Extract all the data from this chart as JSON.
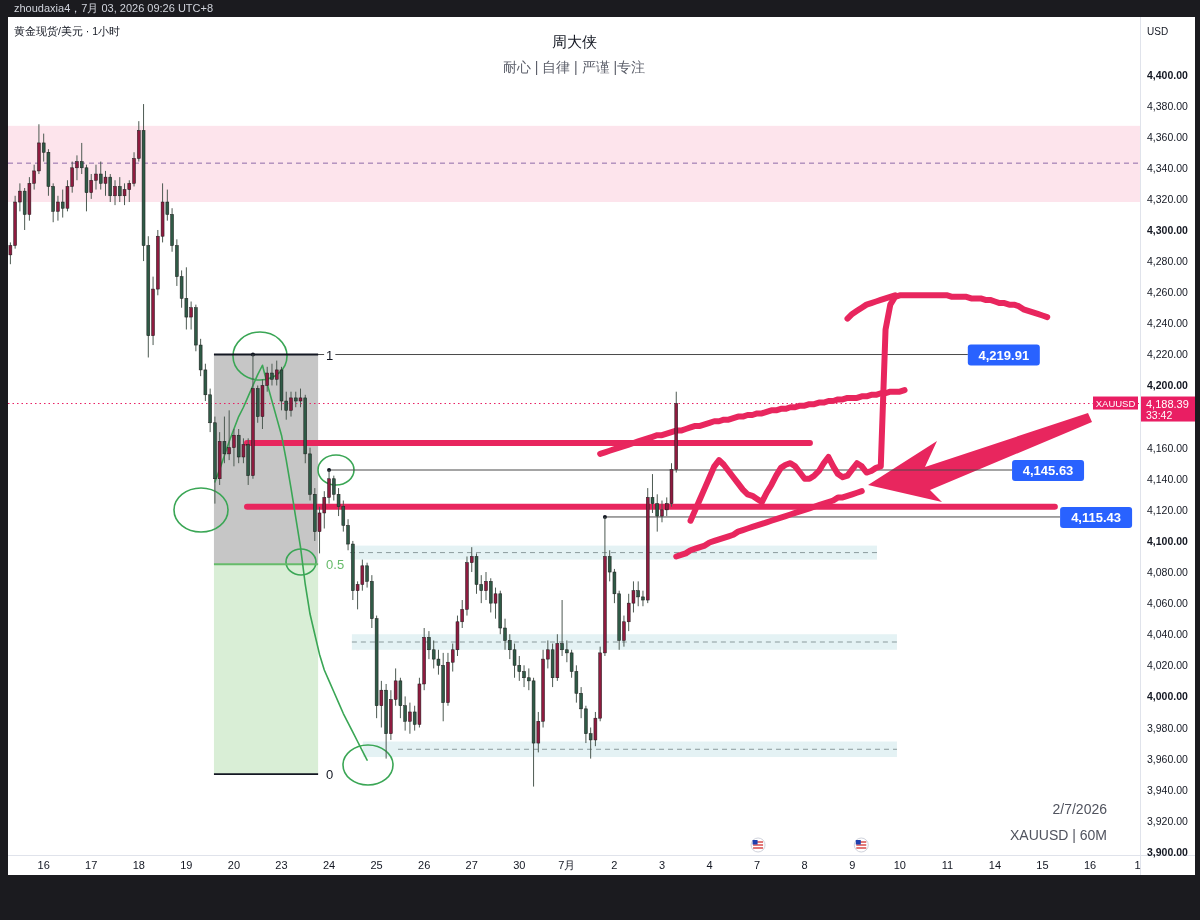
{
  "chart_data": {
    "type": "candlestick",
    "title": "周大侠",
    "subtitle": "耐心 | 自律 | 严谨 |专注",
    "ylabel": "USD",
    "categories": [
      null,
      null,
      null,
      null,
      null,
      null,
      null,
      "16",
      null,
      null,
      null,
      null,
      null,
      null,
      null,
      null,
      null,
      "17",
      null,
      null,
      null,
      null,
      null,
      null,
      null,
      null,
      null,
      "18",
      null,
      null,
      null,
      null,
      null,
      null,
      null,
      null,
      null,
      "19",
      null,
      null,
      null,
      null,
      null,
      null,
      null,
      null,
      null,
      "20",
      null,
      null,
      null,
      null,
      null,
      null,
      null,
      null,
      null,
      "23",
      null,
      null,
      null,
      null,
      null,
      null,
      null,
      null,
      null,
      "24",
      null,
      null,
      null,
      null,
      null,
      null,
      null,
      null,
      null,
      "25",
      null,
      null,
      null,
      null,
      null,
      null,
      null,
      null,
      null,
      "26",
      null,
      null,
      null,
      null,
      null,
      null,
      null,
      null,
      null,
      "27",
      null,
      null,
      null,
      null,
      null,
      null,
      null,
      null,
      null,
      "30",
      null,
      null,
      null,
      null,
      null,
      null,
      null,
      null,
      null,
      "7月",
      null,
      null,
      null,
      null,
      null,
      null,
      null,
      null,
      null,
      "2",
      null,
      null,
      null,
      null,
      null,
      null,
      null,
      null,
      null,
      "3",
      null,
      null,
      null,
      null,
      null,
      null,
      null,
      null,
      null,
      "4",
      null,
      null,
      null,
      null,
      null,
      null,
      null,
      null,
      null,
      "7",
      null,
      null,
      null,
      null,
      null,
      null,
      null,
      null,
      null,
      "8",
      null,
      null,
      null,
      null,
      null,
      null,
      null,
      null,
      null,
      "9",
      null,
      null,
      null,
      null,
      null,
      null,
      null,
      null,
      null,
      "10",
      null,
      null,
      null,
      null,
      null,
      null,
      null,
      null,
      null,
      "11",
      null,
      null,
      null,
      null,
      null,
      null,
      null,
      null,
      null,
      "14",
      null,
      null,
      null,
      null,
      null,
      null,
      null,
      null,
      null,
      "15",
      null,
      null,
      null,
      null,
      null,
      null,
      null,
      null,
      null,
      "16",
      null,
      null,
      null,
      null,
      null,
      null,
      null,
      null,
      null,
      "1"
    ],
    "ohlc": [
      [
        4284,
        4292,
        4278,
        4290
      ],
      [
        4290,
        4322,
        4288,
        4318
      ],
      [
        4318,
        4330,
        4312,
        4325
      ],
      [
        4325,
        4327,
        4300,
        4310
      ],
      [
        4310,
        4334,
        4306,
        4330
      ],
      [
        4330,
        4342,
        4326,
        4338
      ],
      [
        4338,
        4368,
        4336,
        4356
      ],
      [
        4356,
        4362,
        4344,
        4350
      ],
      [
        4350,
        4352,
        4322,
        4328
      ],
      [
        4328,
        4330,
        4305,
        4312
      ],
      [
        4312,
        4322,
        4306,
        4318
      ],
      [
        4318,
        4326,
        4308,
        4314
      ],
      [
        4314,
        4332,
        4312,
        4328
      ],
      [
        4328,
        4344,
        4324,
        4340
      ],
      [
        4340,
        4348,
        4332,
        4344
      ],
      [
        4344,
        4356,
        4336,
        4340
      ],
      [
        4340,
        4342,
        4312,
        4324
      ],
      [
        4324,
        4336,
        4320,
        4332
      ],
      [
        4332,
        4342,
        4326,
        4336
      ],
      [
        4336,
        4344,
        4326,
        4330
      ],
      [
        4330,
        4338,
        4322,
        4334
      ],
      [
        4334,
        4336,
        4318,
        4322
      ],
      [
        4322,
        4332,
        4316,
        4328
      ],
      [
        4328,
        4334,
        4318,
        4322
      ],
      [
        4322,
        4330,
        4316,
        4326
      ],
      [
        4326,
        4332,
        4318,
        4330
      ],
      [
        4330,
        4350,
        4328,
        4346
      ],
      [
        4346,
        4370,
        4344,
        4364
      ],
      [
        4364,
        4381,
        4280,
        4290
      ],
      [
        4290,
        4296,
        4218,
        4232
      ],
      [
        4232,
        4270,
        4226,
        4262
      ],
      [
        4262,
        4300,
        4258,
        4296
      ],
      [
        4296,
        4330,
        4292,
        4318
      ],
      [
        4318,
        4326,
        4306,
        4310
      ],
      [
        4310,
        4314,
        4286,
        4290
      ],
      [
        4290,
        4294,
        4264,
        4270
      ],
      [
        4270,
        4274,
        4250,
        4256
      ],
      [
        4256,
        4276,
        4236,
        4244
      ],
      [
        4244,
        4254,
        4236,
        4250
      ],
      [
        4250,
        4252,
        4222,
        4226
      ],
      [
        4226,
        4230,
        4206,
        4210
      ],
      [
        4210,
        4214,
        4190,
        4194
      ],
      [
        4194,
        4198,
        4170,
        4176
      ],
      [
        4176,
        4180,
        4124,
        4140
      ],
      [
        4140,
        4170,
        4136,
        4164
      ],
      [
        4164,
        4180,
        4150,
        4156
      ],
      [
        4156,
        4184,
        4152,
        4160
      ],
      [
        4160,
        4172,
        4148,
        4168
      ],
      [
        4168,
        4172,
        4150,
        4154
      ],
      [
        4154,
        4166,
        4150,
        4162
      ],
      [
        4162,
        4166,
        4136,
        4142
      ],
      [
        4142,
        4219.91,
        4140,
        4198
      ],
      [
        4198,
        4200,
        4176,
        4180
      ],
      [
        4180,
        4204,
        4172,
        4200
      ],
      [
        4200,
        4212,
        4196,
        4208
      ],
      [
        4208,
        4214,
        4200,
        4204
      ],
      [
        4204,
        4216,
        4200,
        4210
      ],
      [
        4210,
        4212,
        4184,
        4190
      ],
      [
        4190,
        4196,
        4178,
        4184
      ],
      [
        4184,
        4196,
        4180,
        4192
      ],
      [
        4192,
        4196,
        4186,
        4190
      ],
      [
        4190,
        4198,
        4186,
        4192
      ],
      [
        4192,
        4194,
        4150,
        4156
      ],
      [
        4156,
        4160,
        4126,
        4130
      ],
      [
        4130,
        4134,
        4100,
        4106
      ],
      [
        4106,
        4122,
        4092,
        4118
      ],
      [
        4118,
        4132,
        4108,
        4128
      ],
      [
        4128,
        4145.63,
        4124,
        4140
      ],
      [
        4140,
        4142,
        4126,
        4130
      ],
      [
        4130,
        4134,
        4116,
        4122
      ],
      [
        4122,
        4126,
        4106,
        4110
      ],
      [
        4110,
        4114,
        4094,
        4098
      ],
      [
        4098,
        4100,
        4062,
        4068
      ],
      [
        4068,
        4074,
        4056,
        4072
      ],
      [
        4072,
        4088,
        4068,
        4084
      ],
      [
        4084,
        4086,
        4070,
        4074
      ],
      [
        4074,
        4078,
        4044,
        4050
      ],
      [
        4050,
        4052,
        3986,
        3994
      ],
      [
        3994,
        4010,
        3980,
        4004
      ],
      [
        4004,
        4008,
        3960,
        3976
      ],
      [
        3976,
        4004,
        3972,
        3998
      ],
      [
        3998,
        4018,
        3994,
        4010
      ],
      [
        4010,
        4012,
        3986,
        3994
      ],
      [
        3994,
        4000,
        3978,
        3984
      ],
      [
        3984,
        3996,
        3976,
        3990
      ],
      [
        3990,
        3994,
        3978,
        3982
      ],
      [
        3982,
        4012,
        3980,
        4008
      ],
      [
        4008,
        4044,
        4004,
        4038
      ],
      [
        4038,
        4042,
        4024,
        4030
      ],
      [
        4030,
        4036,
        4018,
        4024
      ],
      [
        4024,
        4030,
        4014,
        4020
      ],
      [
        4020,
        4028,
        3984,
        3996
      ],
      [
        3996,
        4028,
        3994,
        4022
      ],
      [
        4022,
        4034,
        4016,
        4030
      ],
      [
        4030,
        4052,
        4026,
        4048
      ],
      [
        4048,
        4062,
        4044,
        4056
      ],
      [
        4056,
        4090,
        4052,
        4086
      ],
      [
        4086,
        4096,
        4080,
        4090
      ],
      [
        4090,
        4092,
        4066,
        4072
      ],
      [
        4072,
        4078,
        4060,
        4068
      ],
      [
        4068,
        4080,
        4062,
        4074
      ],
      [
        4074,
        4076,
        4054,
        4060
      ],
      [
        4060,
        4070,
        4050,
        4066
      ],
      [
        4066,
        4068,
        4040,
        4044
      ],
      [
        4044,
        4050,
        4030,
        4036
      ],
      [
        4036,
        4040,
        4024,
        4030
      ],
      [
        4030,
        4034,
        4012,
        4020
      ],
      [
        4020,
        4026,
        4010,
        4016
      ],
      [
        4016,
        4020,
        4006,
        4012
      ],
      [
        4012,
        4018,
        4004,
        4010
      ],
      [
        4010,
        4012,
        3942,
        3970
      ],
      [
        3970,
        3990,
        3964,
        3984
      ],
      [
        3984,
        4030,
        3980,
        4024
      ],
      [
        4024,
        4036,
        4018,
        4030
      ],
      [
        4030,
        4034,
        4006,
        4012
      ],
      [
        4012,
        4040,
        4010,
        4034
      ],
      [
        4034,
        4062,
        4026,
        4030
      ],
      [
        4030,
        4036,
        4022,
        4028
      ],
      [
        4028,
        4030,
        4012,
        4016
      ],
      [
        4016,
        4020,
        3996,
        4002
      ],
      [
        4002,
        4006,
        3986,
        3992
      ],
      [
        3992,
        3994,
        3970,
        3976
      ],
      [
        3976,
        3980,
        3960,
        3972
      ],
      [
        3972,
        3990,
        3968,
        3986
      ],
      [
        3986,
        4032,
        3984,
        4028
      ],
      [
        4028,
        4115.43,
        4026,
        4090
      ],
      [
        4090,
        4094,
        4074,
        4080
      ],
      [
        4080,
        4082,
        4060,
        4066
      ],
      [
        4066,
        4068,
        4030,
        4036
      ],
      [
        4036,
        4052,
        4032,
        4048
      ],
      [
        4048,
        4066,
        4042,
        4060
      ],
      [
        4060,
        4074,
        4054,
        4068
      ],
      [
        4068,
        4074,
        4058,
        4064
      ],
      [
        4064,
        4068,
        4058,
        4062
      ],
      [
        4062,
        4134,
        4060,
        4128
      ],
      [
        4128,
        4143,
        4118,
        4124
      ],
      [
        4124,
        4130,
        4106,
        4116
      ],
      [
        4116,
        4126,
        4112,
        4120
      ],
      [
        4120,
        4128,
        4116,
        4124
      ],
      [
        4124,
        4150,
        4122,
        4146
      ],
      [
        4146,
        4196,
        4144,
        4188.39
      ],
      null,
      null,
      null,
      null,
      null,
      null,
      null,
      null,
      null,
      null,
      null,
      null,
      null,
      null,
      null,
      null,
      null,
      null,
      null,
      null,
      null,
      null,
      null,
      null,
      null,
      null,
      null,
      null,
      null,
      null,
      null,
      null,
      null,
      null,
      null,
      null,
      null,
      null,
      null,
      null,
      null,
      null,
      null,
      null,
      null,
      null,
      null,
      null,
      null,
      null,
      null,
      null,
      null,
      null,
      null,
      null,
      null,
      null,
      null,
      null,
      null,
      null,
      null,
      null,
      null,
      null,
      null,
      null,
      null,
      null,
      null,
      null,
      null,
      null,
      null,
      null,
      null,
      null,
      null,
      null,
      null,
      null,
      null,
      null,
      null,
      null,
      null,
      null,
      null,
      null,
      null,
      null,
      null,
      null,
      null,
      null,
      null
    ],
    "series": [
      {
        "type": "line",
        "color": "#e8265e",
        "values": [
          null,
          null,
          null,
          null,
          null,
          null,
          null,
          null,
          null,
          null,
          null,
          null,
          null,
          null,
          null,
          null,
          null,
          null,
          null,
          null,
          null,
          null,
          null,
          null,
          null,
          null,
          null,
          null,
          null,
          null,
          null,
          null,
          null,
          null,
          null,
          null,
          null,
          null,
          null,
          null,
          null,
          null,
          null,
          null,
          null,
          null,
          null,
          null,
          null,
          null,
          null,
          null,
          null,
          null,
          null,
          null,
          null,
          null,
          null,
          null,
          null,
          null,
          null,
          null,
          null,
          null,
          null,
          null,
          null,
          null,
          null,
          null,
          null,
          null,
          null,
          null,
          null,
          null,
          null,
          null,
          null,
          null,
          null,
          null,
          null,
          null,
          null,
          null,
          null,
          null,
          null,
          null,
          null,
          null,
          null,
          null,
          null,
          null,
          null,
          null,
          null,
          null,
          null,
          null,
          null,
          null,
          null,
          null,
          null,
          null,
          null,
          null,
          null,
          null,
          null,
          null,
          null,
          null,
          null,
          null,
          null,
          null,
          null,
          null,
          4156,
          4157,
          4158,
          4159,
          4160,
          4161,
          4162,
          4163,
          4164,
          4165,
          4166,
          4167,
          4168,
          4168,
          4169,
          4170,
          4171,
          4171,
          4172,
          4173,
          4174,
          4174,
          4175,
          4176,
          4177,
          4177,
          4178,
          4178,
          4179,
          4180,
          4180,
          4181,
          4181,
          4182,
          4182,
          4183,
          4184,
          4184,
          4185,
          4185,
          4186,
          4186,
          4187,
          4187,
          4188,
          4188,
          4189,
          4189,
          4190,
          4190,
          4191,
          4191,
          4192,
          4192,
          4192,
          4193,
          4193,
          4194,
          4194,
          4195,
          4195,
          4196,
          4196,
          4196,
          4197,
          null,
          null,
          null,
          null,
          null,
          null,
          null,
          null,
          null,
          null,
          null,
          null,
          null,
          null,
          null,
          null,
          null,
          null,
          null,
          null,
          null,
          null,
          null,
          null,
          null,
          null,
          null,
          null,
          null,
          null,
          null,
          null,
          null,
          null,
          null,
          null,
          null,
          null,
          null,
          null,
          null,
          null,
          null,
          null,
          null,
          null,
          null,
          null,
          null
        ]
      },
      {
        "type": "line",
        "color": "#3aa655",
        "values": [
          null,
          null,
          null,
          null,
          null,
          null,
          null,
          null,
          null,
          null,
          null,
          null,
          null,
          null,
          null,
          null,
          null,
          null,
          null,
          null,
          null,
          null,
          null,
          null,
          null,
          null,
          null,
          null,
          null,
          null,
          null,
          null,
          null,
          null,
          null,
          null,
          null,
          null,
          null,
          null,
          null,
          null,
          null,
          4138,
          4146,
          4155,
          4164,
          4172,
          4180,
          4186,
          4193,
          4200,
          4207,
          4213,
          4201,
          4190,
          4179,
          4168,
          4152,
          4134,
          4115,
          4096,
          4072,
          4053,
          4040,
          4027,
          4017,
          4010,
          4003,
          3996,
          3989,
          3983,
          3977,
          3971,
          3965,
          3959,
          null,
          null,
          null,
          null,
          null,
          null,
          null,
          null,
          null,
          null,
          null,
          null,
          null,
          null,
          null,
          null,
          null,
          null,
          null,
          null,
          null,
          null,
          null,
          null,
          null,
          null,
          null,
          null,
          null,
          null,
          null,
          null,
          null,
          null,
          null,
          null,
          null,
          null,
          null,
          null,
          null,
          null,
          null,
          null,
          null,
          null,
          null,
          null,
          null,
          null,
          null,
          null,
          null,
          null,
          null,
          null,
          null,
          null,
          null,
          null,
          null,
          null,
          null,
          null,
          null,
          null,
          null,
          null,
          null,
          null,
          null,
          null,
          null,
          null,
          null,
          null,
          null,
          null,
          null,
          null,
          null,
          null,
          null,
          null,
          null,
          null,
          null,
          null,
          null,
          null,
          null,
          null,
          null,
          null,
          null,
          null,
          null,
          null,
          null,
          null,
          null,
          null,
          null,
          null,
          null,
          null,
          null,
          null,
          null,
          null,
          null,
          null,
          null,
          null,
          null,
          null,
          null,
          null,
          null,
          null,
          null,
          null,
          null,
          null,
          null,
          null,
          null,
          null,
          null,
          null,
          null,
          null,
          null,
          null,
          null,
          null,
          null,
          null,
          null,
          null,
          null,
          null,
          null,
          null,
          null,
          null,
          null,
          null,
          null,
          null,
          null,
          null,
          null,
          null,
          null,
          null,
          null,
          null,
          null,
          null,
          null,
          null
        ]
      },
      {
        "type": "line",
        "color": "#e8265e",
        "values": [
          null,
          null,
          null,
          null,
          null,
          null,
          null,
          null,
          null,
          null,
          null,
          null,
          null,
          null,
          null,
          null,
          null,
          null,
          null,
          null,
          null,
          null,
          null,
          null,
          null,
          null,
          null,
          null,
          null,
          null,
          null,
          null,
          null,
          null,
          null,
          null,
          null,
          null,
          null,
          null,
          null,
          null,
          null,
          null,
          null,
          null,
          null,
          null,
          null,
          null,
          null,
          null,
          null,
          null,
          null,
          null,
          null,
          null,
          null,
          null,
          null,
          null,
          null,
          null,
          null,
          null,
          null,
          null,
          null,
          null,
          null,
          null,
          null,
          null,
          null,
          null,
          null,
          null,
          null,
          null,
          null,
          null,
          null,
          null,
          null,
          null,
          null,
          null,
          null,
          null,
          null,
          null,
          null,
          null,
          null,
          null,
          null,
          null,
          null,
          null,
          null,
          null,
          null,
          null,
          null,
          null,
          null,
          null,
          null,
          null,
          null,
          null,
          null,
          null,
          null,
          null,
          null,
          null,
          null,
          null,
          null,
          null,
          null,
          null,
          null,
          null,
          null,
          null,
          null,
          null,
          null,
          null,
          null,
          null,
          null,
          null,
          null,
          null,
          null,
          null,
          4090,
          4091,
          4092,
          4094,
          4095,
          4096,
          4097,
          4099,
          4100,
          4101,
          4102,
          4103,
          4104,
          4106,
          4107,
          4108,
          4109,
          4110,
          4111,
          4112,
          4113,
          4114,
          4115,
          4116,
          4117,
          4118,
          4119,
          4120,
          4121,
          4122,
          4123,
          4124,
          4125,
          4126,
          4128,
          4128,
          4129,
          4130,
          4131,
          4132,
          null,
          null,
          null,
          null,
          null,
          null,
          null,
          null,
          null,
          null,
          null,
          null,
          null,
          null,
          null,
          null,
          null,
          null,
          null,
          null,
          null,
          null,
          null,
          null,
          null,
          null,
          null,
          null,
          null,
          null,
          null,
          null,
          null,
          null,
          null,
          null,
          null,
          null,
          null,
          null,
          null,
          null,
          null,
          null,
          null,
          null,
          null,
          null,
          null,
          null,
          null,
          null,
          null,
          null,
          null,
          null,
          null,
          null
        ]
      },
      {
        "type": "line",
        "color": "#e8265e",
        "values": [
          null,
          null,
          null,
          null,
          null,
          null,
          null,
          null,
          null,
          null,
          null,
          null,
          null,
          null,
          null,
          null,
          null,
          null,
          null,
          null,
          null,
          null,
          null,
          null,
          null,
          null,
          null,
          null,
          null,
          null,
          null,
          null,
          null,
          null,
          null,
          null,
          null,
          null,
          null,
          null,
          null,
          null,
          null,
          null,
          null,
          null,
          null,
          null,
          null,
          null,
          null,
          null,
          null,
          null,
          null,
          null,
          null,
          null,
          null,
          null,
          null,
          null,
          null,
          null,
          null,
          null,
          null,
          null,
          null,
          null,
          null,
          null,
          null,
          null,
          null,
          null,
          null,
          null,
          null,
          null,
          null,
          null,
          null,
          null,
          null,
          null,
          null,
          null,
          null,
          null,
          null,
          null,
          null,
          null,
          null,
          null,
          null,
          null,
          null,
          null,
          null,
          null,
          null,
          null,
          null,
          null,
          null,
          null,
          null,
          null,
          null,
          null,
          null,
          null,
          null,
          null,
          null,
          null,
          null,
          null,
          null,
          null,
          null,
          null,
          null,
          null,
          null,
          null,
          null,
          null,
          null,
          null,
          null,
          null,
          null,
          null,
          null,
          null,
          null,
          null,
          null,
          null,
          null,
          4113,
          4120,
          4127,
          4134,
          4141,
          4148,
          4152,
          4149,
          4145,
          4141,
          4137,
          4133,
          4130,
          4129,
          4127,
          4125,
          4131,
          4136,
          4142,
          4147,
          4149,
          4150,
          4148,
          4144,
          4140,
          4140,
          4142,
          4145,
          4150,
          4154,
          4148,
          4143,
          4141,
          4142,
          4146,
          4150,
          4148,
          4144,
          4145,
          4147,
          4148,
          4236,
          4252,
          4257,
          4258,
          4258,
          4258,
          4258,
          4258,
          4258,
          4258,
          4258,
          4258,
          4258,
          4258,
          4257,
          4257,
          4257,
          4257,
          4256,
          4256,
          4256,
          4255,
          4255,
          4254,
          4253,
          4253,
          4252,
          4252,
          4251,
          4249,
          4248,
          4247,
          4246,
          4245,
          4244,
          null,
          null,
          null,
          null,
          null,
          null,
          null,
          null,
          null,
          null,
          null,
          null,
          null,
          null,
          null,
          null,
          null,
          null,
          null
        ]
      },
      {
        "type": "line",
        "color": "#e8265e",
        "values": [
          null,
          null,
          null,
          null,
          null,
          null,
          null,
          null,
          null,
          null,
          null,
          null,
          null,
          null,
          null,
          null,
          null,
          null,
          null,
          null,
          null,
          null,
          null,
          null,
          null,
          null,
          null,
          null,
          null,
          null,
          null,
          null,
          null,
          null,
          null,
          null,
          null,
          null,
          null,
          null,
          null,
          null,
          null,
          null,
          null,
          null,
          null,
          null,
          null,
          null,
          null,
          null,
          null,
          null,
          null,
          null,
          null,
          null,
          null,
          null,
          null,
          null,
          null,
          null,
          null,
          null,
          null,
          null,
          null,
          null,
          null,
          null,
          null,
          null,
          null,
          null,
          null,
          null,
          null,
          null,
          null,
          null,
          null,
          null,
          null,
          null,
          null,
          null,
          null,
          null,
          null,
          null,
          null,
          null,
          null,
          null,
          null,
          null,
          null,
          null,
          null,
          null,
          null,
          null,
          null,
          null,
          null,
          null,
          null,
          null,
          null,
          null,
          null,
          null,
          null,
          null,
          null,
          null,
          null,
          null,
          null,
          null,
          null,
          null,
          null,
          null,
          null,
          null,
          null,
          null,
          null,
          null,
          null,
          null,
          null,
          null,
          null,
          null,
          null,
          null,
          null,
          null,
          null,
          null,
          null,
          null,
          null,
          null,
          null,
          null,
          null,
          null,
          null,
          null,
          null,
          null,
          null,
          null,
          null,
          null,
          null,
          null,
          null,
          null,
          null,
          null,
          null,
          null,
          null,
          null,
          null,
          null,
          null,
          null,
          null,
          null,
          4243,
          4246,
          4248,
          4250,
          4252,
          4253,
          4254,
          4255,
          4256,
          4257,
          4258,
          null,
          null,
          null,
          null,
          null,
          null,
          null,
          null,
          null,
          null,
          null,
          null,
          null,
          null,
          null,
          null,
          null,
          null,
          null,
          null,
          null,
          null,
          null,
          null,
          null,
          null,
          null,
          null,
          null,
          null,
          null,
          null,
          null,
          null,
          null,
          null,
          null,
          null,
          null,
          null,
          null,
          null,
          null,
          null,
          null,
          null,
          null,
          null,
          null,
          null,
          null
        ]
      }
    ],
    "ylim": [
      3898,
      4437
    ],
    "yticks": [
      {
        "value": 3900,
        "label": "3,900.00"
      },
      {
        "value": 3920,
        "label": "3,920.00"
      },
      {
        "value": 3940,
        "label": "3,940.00"
      },
      {
        "value": 3960,
        "label": "3,960.00"
      },
      {
        "value": 3980,
        "label": "3,980.00"
      },
      {
        "value": 4000,
        "label": "4,000.00"
      },
      {
        "value": 4020,
        "label": "4,020.00"
      },
      {
        "value": 4040,
        "label": "4,040.00"
      },
      {
        "value": 4060,
        "label": "4,060.00"
      },
      {
        "value": 4080,
        "label": "4,080.00"
      },
      {
        "value": 4100,
        "label": "4,100.00"
      },
      {
        "value": 4120,
        "label": "4,120.00"
      },
      {
        "value": 4140,
        "label": "4,140.00"
      },
      {
        "value": 4160,
        "label": "4,160.00"
      },
      {
        "value": 4200,
        "label": "4,200.00"
      },
      {
        "value": 4220,
        "label": "4,220.00"
      },
      {
        "value": 4240,
        "label": "4,240.00"
      },
      {
        "value": 4260,
        "label": "4,260.00"
      },
      {
        "value": 4280,
        "label": "4,280.00"
      },
      {
        "value": 4300,
        "label": "4,300.00"
      },
      {
        "value": 4320,
        "label": "4,320.00"
      },
      {
        "value": 4340,
        "label": "4,340.00"
      },
      {
        "value": 4360,
        "label": "4,360.00"
      },
      {
        "value": 4380,
        "label": "4,380.00"
      },
      {
        "value": 4400,
        "label": "4,400.00"
      }
    ],
    "bands": [
      {
        "axis": "y",
        "from": 4318,
        "to": 4367,
        "color": "#fde4ec"
      },
      {
        "axis": "y",
        "from": 4085,
        "to": 4219.91,
        "color": "#c6c6c6"
      },
      {
        "axis": "y",
        "from": 3950,
        "to": 4085,
        "color": "#d9eed6"
      },
      {
        "axis": "y",
        "from": 4088,
        "to": 4097,
        "color": "#e4f2f4"
      },
      {
        "axis": "y",
        "from": 4030,
        "to": 4040,
        "color": "#e4f2f4"
      },
      {
        "axis": "y",
        "from": 3961,
        "to": 3971,
        "color": "#e4f2f4"
      }
    ],
    "ref_lines": [
      {
        "axis": "y",
        "value": 4188.39,
        "label": "4,188.39",
        "color": "#e91e63",
        "line_style": "dotted"
      },
      {
        "axis": "y",
        "value": 4219.91,
        "label": "4,219.91"
      },
      {
        "axis": "y",
        "value": 4145.63,
        "label": "4,145.63"
      },
      {
        "axis": "y",
        "value": 4115.43,
        "label": "4,115.43"
      },
      {
        "axis": "y",
        "value": 4219.91,
        "color": "#131722"
      },
      {
        "axis": "y",
        "value": 4085,
        "color": "#66bb6a"
      },
      {
        "axis": "y",
        "value": 3950,
        "color": "#131722"
      },
      {
        "axis": "y",
        "value": 4343,
        "color": "#8e6aa8",
        "line_style": "dashed"
      },
      {
        "axis": "y",
        "value": 4092.5,
        "color": "#8a9a9c",
        "line_style": "dashed"
      },
      {
        "axis": "y",
        "value": 4035,
        "color": "#8a9a9c",
        "line_style": "dashed"
      },
      {
        "axis": "y",
        "value": 3966,
        "color": "#8a9a9c",
        "line_style": "dashed"
      },
      {
        "axis": "y",
        "value": 4163,
        "color": "#e8265e"
      },
      {
        "axis": "y",
        "value": 4122,
        "color": "#e8265e"
      }
    ],
    "annotations": [
      "zhoudaxia4，7月 03, 2026 09:26 UTC+8",
      "黄金现货/美元 · 1小时",
      "2/7/2026",
      "XAUUSD | 60M",
      "33:42",
      {
        "text": "XAUUSD",
        "y": 4188.39
      },
      {
        "text": "1",
        "y": 4219.91
      },
      {
        "text": "0.5",
        "y": 4085
      },
      {
        "text": "0",
        "y": 3950
      }
    ]
  }
}
